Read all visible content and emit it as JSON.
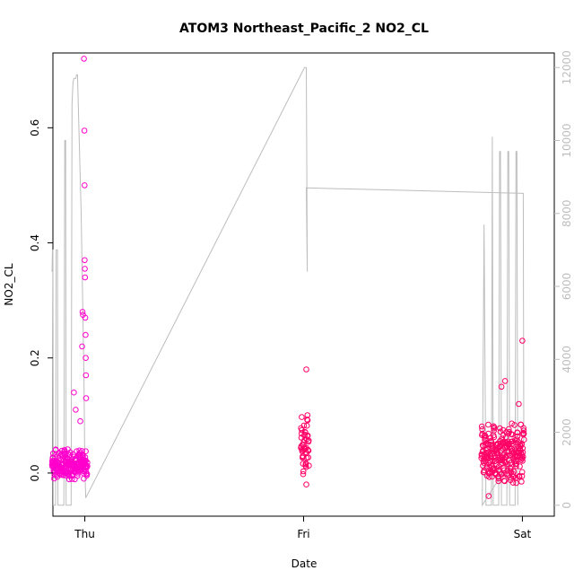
{
  "chart_data": {
    "type": "scatter",
    "title": "ATOM3 Northeast_Pacific_2 NO2_CL",
    "xlabel": "Date",
    "ylabel": "NO2_CL",
    "x_ticks": [
      "Thu",
      "Fri",
      "Sat"
    ],
    "x_range_hours": [
      -3.5,
      51.5
    ],
    "x_tick_hours": [
      0,
      24,
      48
    ],
    "ylim_left": [
      -0.075,
      0.73
    ],
    "yticks_left": [
      0.0,
      0.2,
      0.4,
      0.6
    ],
    "ylim_right": [
      -300,
      12400
    ],
    "yticks_right": [
      0,
      2000,
      4000,
      6000,
      8000,
      10000,
      12000
    ],
    "grid": false,
    "legend": "none",
    "colors": {
      "points_early": "#ff00cc",
      "points_late": "#ff0066",
      "altitude_line": "#bdbdbd",
      "axes": "#000000",
      "right_axis": "#bdbdbd"
    },
    "series": [
      {
        "kind": "points",
        "segments": [
          {
            "x_start": -3.6,
            "x_end": 0.3,
            "base": 0.015,
            "spread": 0.03,
            "bursts": [
              {
                "x": -1.2,
                "value": 0.14
              },
              {
                "x": -1.0,
                "value": 0.11
              },
              {
                "x": -0.5,
                "value": 0.09
              },
              {
                "x": -0.3,
                "value": 0.22
              },
              {
                "x": -0.25,
                "value": 0.28
              },
              {
                "x": -0.2,
                "value": 0.275
              },
              {
                "x": -0.1,
                "value": 0.72
              },
              {
                "x": -0.05,
                "value": 0.595
              },
              {
                "x": -0.03,
                "value": 0.5
              },
              {
                "x": -0.02,
                "value": 0.37
              },
              {
                "x": 0.0,
                "value": 0.355
              },
              {
                "x": 0.02,
                "value": 0.34
              },
              {
                "x": 0.05,
                "value": 0.27
              },
              {
                "x": 0.08,
                "value": 0.24
              },
              {
                "x": 0.1,
                "value": 0.2
              },
              {
                "x": 0.12,
                "value": 0.17
              },
              {
                "x": 0.14,
                "value": 0.13
              }
            ]
          },
          {
            "x_start": 23.7,
            "x_end": 24.6,
            "base": 0.05,
            "spread": 0.06,
            "bursts": [
              {
                "x": 24.3,
                "value": 0.18
              },
              {
                "x": 24.3,
                "value": -0.02
              }
            ]
          },
          {
            "x_start": 43.5,
            "x_end": 48.2,
            "base": 0.035,
            "spread": 0.06,
            "bursts": [
              {
                "x": 44.3,
                "value": -0.04
              },
              {
                "x": 45.7,
                "value": 0.15
              },
              {
                "x": 46.1,
                "value": 0.16
              },
              {
                "x": 47.6,
                "value": 0.12
              },
              {
                "x": 47.9,
                "value": -0.015
              },
              {
                "x": 48.0,
                "value": 0.23
              }
            ]
          }
        ]
      },
      {
        "kind": "line",
        "axis": "right",
        "points": [
          [
            -3.6,
            6400
          ],
          [
            -3.55,
            7000
          ],
          [
            -3.5,
            7000
          ],
          [
            -3.45,
            0
          ],
          [
            -3.2,
            0
          ],
          [
            -3.15,
            7000
          ],
          [
            -3.0,
            7000
          ],
          [
            -2.95,
            0
          ],
          [
            -2.3,
            0
          ],
          [
            -2.2,
            10000
          ],
          [
            -2.1,
            10000
          ],
          [
            -2.05,
            0
          ],
          [
            -1.5,
            0
          ],
          [
            -1.4,
            11000
          ],
          [
            -1.3,
            11600
          ],
          [
            -1.2,
            11700
          ],
          [
            -1.0,
            11700
          ],
          [
            -0.9,
            11800
          ],
          [
            -0.8,
            11800
          ],
          [
            -0.4,
            8000
          ],
          [
            -0.1,
            3500
          ],
          [
            0.0,
            1000
          ],
          [
            0.1,
            200
          ],
          [
            24.1,
            12000
          ],
          [
            24.3,
            12000
          ],
          [
            24.35,
            9000
          ],
          [
            24.4,
            6400
          ],
          [
            24.3,
            8700
          ],
          [
            48.1,
            8550
          ],
          [
            48.15,
            1800
          ],
          [
            43.6,
            0
          ],
          [
            43.8,
            7700
          ],
          [
            44.0,
            0
          ],
          [
            44.6,
            0
          ],
          [
            44.7,
            10100
          ],
          [
            44.8,
            0
          ],
          [
            45.4,
            0
          ],
          [
            45.5,
            9700
          ],
          [
            45.6,
            9700
          ],
          [
            45.7,
            0
          ],
          [
            46.3,
            0
          ],
          [
            46.4,
            9700
          ],
          [
            46.5,
            9700
          ],
          [
            46.6,
            0
          ],
          [
            47.2,
            0
          ],
          [
            47.3,
            9700
          ],
          [
            47.4,
            9700
          ],
          [
            47.5,
            0
          ]
        ]
      }
    ]
  }
}
